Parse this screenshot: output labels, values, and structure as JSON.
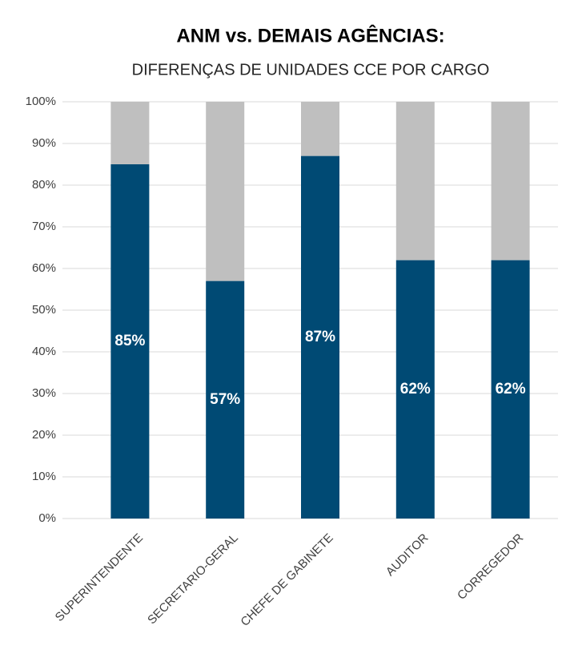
{
  "chart_data": {
    "type": "stacked_bar",
    "title": "ANM vs. DEMAIS AGÊNCIAS:",
    "subtitle": "DIFERENÇAS DE UNIDADES CCE POR CARGO",
    "categories": [
      "SUPERINTENDENTE",
      "SECRETARIO-GERAL",
      "CHEFE DE GABINETE",
      "AUDITOR",
      "CORREGEDOR"
    ],
    "series": [
      {
        "color": "#004a74",
        "values": [
          85,
          57,
          87,
          62,
          62
        ],
        "value_labels": [
          "85%",
          "57%",
          "87%",
          "62%",
          "62%"
        ]
      },
      {
        "color": "#bfbfbf",
        "values": [
          15,
          43,
          13,
          38,
          38
        ]
      }
    ],
    "ylim": [
      0,
      100
    ],
    "yticks": [
      {
        "value": 0,
        "label": "0%"
      },
      {
        "value": 10,
        "label": "10%"
      },
      {
        "value": 20,
        "label": "20%"
      },
      {
        "value": 30,
        "label": "30%"
      },
      {
        "value": 40,
        "label": "40%"
      },
      {
        "value": 50,
        "label": "50%"
      },
      {
        "value": 60,
        "label": "60%"
      },
      {
        "value": 70,
        "label": "70%"
      },
      {
        "value": 80,
        "label": "80%"
      },
      {
        "value": 90,
        "label": "90%"
      },
      {
        "value": 100,
        "label": "100%"
      }
    ],
    "grid": true
  }
}
